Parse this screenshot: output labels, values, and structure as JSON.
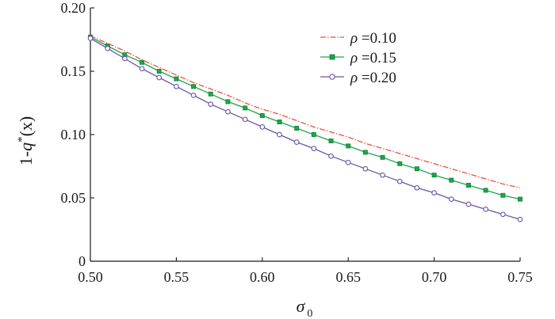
{
  "chart_data": {
    "type": "line",
    "xlabel": "σ",
    "xlabel_sub": "0",
    "ylabel_pre": "1-",
    "ylabel_var": "q",
    "ylabel_sup": "*",
    "ylabel_post": "(x)",
    "xlim": [
      0.5,
      0.75
    ],
    "ylim": [
      0,
      0.2
    ],
    "x_ticks": [
      "0.50",
      "0.55",
      "0.60",
      "0.65",
      "0.70",
      "0.75"
    ],
    "y_ticks": [
      "0",
      "0.05",
      "0.10",
      "0.15",
      "0.20"
    ],
    "x_tick_values": [
      0.5,
      0.55,
      0.6,
      0.65,
      0.7,
      0.75
    ],
    "y_tick_values": [
      0,
      0.05,
      0.1,
      0.15,
      0.2
    ],
    "grid": false,
    "legend_position": "top-right",
    "x": [
      0.5,
      0.51,
      0.52,
      0.53,
      0.54,
      0.55,
      0.56,
      0.57,
      0.58,
      0.59,
      0.6,
      0.61,
      0.62,
      0.63,
      0.64,
      0.65,
      0.66,
      0.67,
      0.68,
      0.69,
      0.7,
      0.71,
      0.72,
      0.73,
      0.74,
      0.75
    ],
    "series": [
      {
        "name": "ρ =0.10",
        "symbol": "ρ",
        "value_text": " =0.10",
        "color": "#e8543c",
        "style": "dashdot",
        "marker": "none",
        "values": [
          0.178,
          0.172,
          0.166,
          0.159,
          0.153,
          0.147,
          0.141,
          0.136,
          0.131,
          0.125,
          0.12,
          0.116,
          0.111,
          0.106,
          0.102,
          0.098,
          0.093,
          0.089,
          0.085,
          0.081,
          0.077,
          0.073,
          0.069,
          0.065,
          0.061,
          0.058
        ]
      },
      {
        "name": "ρ =0.15",
        "symbol": "ρ",
        "value_text": " =0.15",
        "color": "#1aa64a",
        "style": "solid",
        "marker": "square",
        "values": [
          0.177,
          0.17,
          0.163,
          0.157,
          0.15,
          0.144,
          0.138,
          0.132,
          0.126,
          0.121,
          0.115,
          0.11,
          0.105,
          0.1,
          0.095,
          0.091,
          0.086,
          0.082,
          0.077,
          0.073,
          0.068,
          0.064,
          0.06,
          0.056,
          0.052,
          0.049
        ]
      },
      {
        "name": "ρ =0.20",
        "symbol": "ρ",
        "value_text": " =0.20",
        "color": "#6a55a4",
        "style": "solid",
        "marker": "circle",
        "values": [
          0.176,
          0.168,
          0.16,
          0.152,
          0.145,
          0.138,
          0.131,
          0.124,
          0.118,
          0.112,
          0.106,
          0.1,
          0.094,
          0.089,
          0.083,
          0.078,
          0.073,
          0.068,
          0.063,
          0.058,
          0.054,
          0.049,
          0.045,
          0.041,
          0.037,
          0.033
        ]
      }
    ]
  }
}
